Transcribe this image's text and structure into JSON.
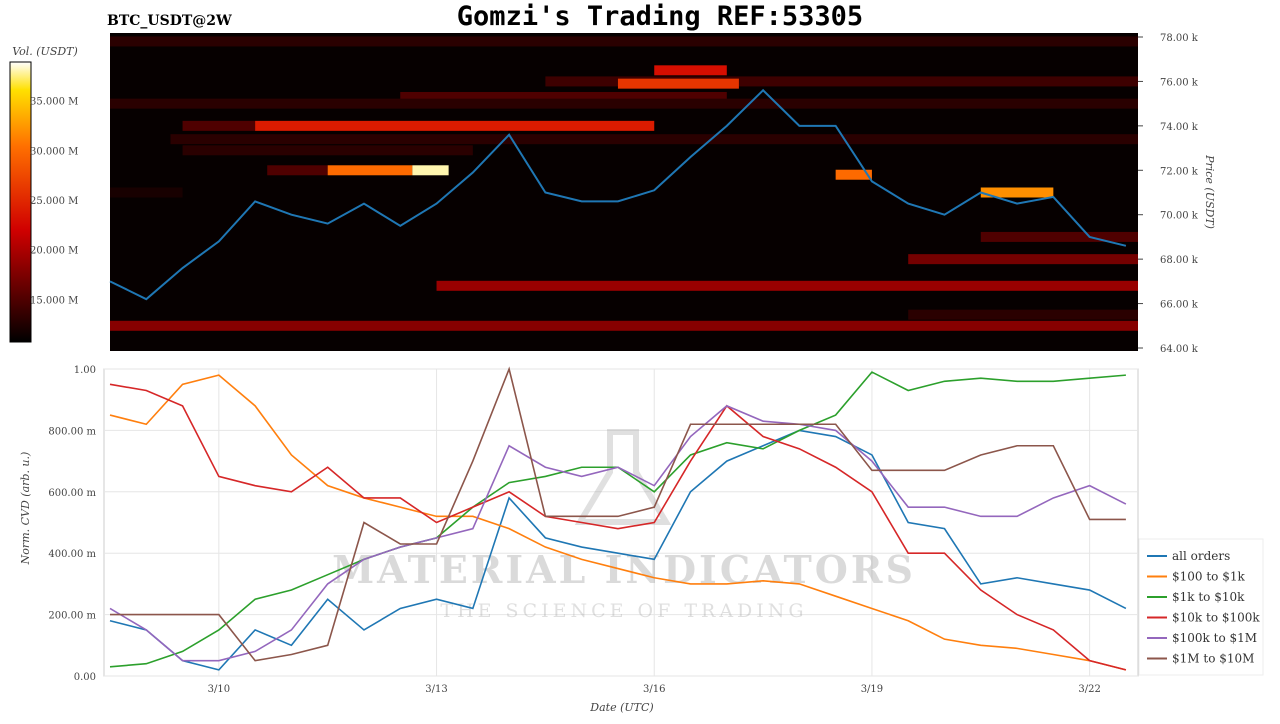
{
  "title": "Gomzi's Trading REF:53305",
  "pair_label": "BTC_USDT@2W",
  "watermark": {
    "line1": "MATERIAL INDICATORS",
    "line2": "THE SCIENCE OF TRADING"
  },
  "chart_data": [
    {
      "type": "heatmap",
      "title": "BTC_USDT@2W",
      "ylabel": "Price (USDT)",
      "yticks": [
        "64.00 k",
        "66.00 k",
        "68.00 k",
        "70.00 k",
        "72.00 k",
        "74.00 k",
        "76.00 k",
        "78.00 k"
      ],
      "ylim": [
        64000,
        78000
      ],
      "xlim": [
        "3/8 12:00",
        "3/22 16:00"
      ],
      "colorbar": {
        "label": "Vol. (USDT)",
        "ticks": [
          "15.000 M",
          "20.000 M",
          "25.000 M",
          "30.000 M",
          "35.000 M"
        ],
        "range_millions": [
          10.7,
          38.9
        ],
        "colormap": "hot"
      },
      "liquidity_bands": [
        {
          "price": 77800,
          "from": "3/8 12:00",
          "to": "3/22 16:00",
          "volume_m": 13
        },
        {
          "price": 76500,
          "from": "3/16 00:00",
          "to": "3/17 00:00",
          "volume_m": 23
        },
        {
          "price": 76000,
          "from": "3/14 12:00",
          "to": "3/22 16:00",
          "volume_m": 14
        },
        {
          "price": 75900,
          "from": "3/15 12:00",
          "to": "3/17 04:00",
          "volume_m": 26
        },
        {
          "price": 75300,
          "from": "3/12 12:00",
          "to": "3/17 00:00",
          "volume_m": 15
        },
        {
          "price": 75000,
          "from": "3/8 12:00",
          "to": "3/22 16:00",
          "volume_m": 13
        },
        {
          "price": 74000,
          "from": "3/9 12:00",
          "to": "3/10 12:00",
          "volume_m": 15
        },
        {
          "price": 74000,
          "from": "3/10 12:00",
          "to": "3/16 00:00",
          "volume_m": 24
        },
        {
          "price": 73400,
          "from": "3/9 08:00",
          "to": "3/22 16:00",
          "volume_m": 13
        },
        {
          "price": 72900,
          "from": "3/9 12:00",
          "to": "3/13 12:00",
          "volume_m": 13
        },
        {
          "price": 72000,
          "from": "3/10 16:00",
          "to": "3/11 12:00",
          "volume_m": 15
        },
        {
          "price": 72000,
          "from": "3/11 12:00",
          "to": "3/12 16:00",
          "volume_m": 30
        },
        {
          "price": 72000,
          "from": "3/12 16:00",
          "to": "3/13 04:00",
          "volume_m": 38
        },
        {
          "price": 71000,
          "from": "3/8 12:00",
          "to": "3/9 12:00",
          "volume_m": 12
        },
        {
          "price": 71800,
          "from": "3/18 12:00",
          "to": "3/19 00:00",
          "volume_m": 30
        },
        {
          "price": 71000,
          "from": "3/20 12:00",
          "to": "3/21 12:00",
          "volume_m": 32
        },
        {
          "price": 69000,
          "from": "3/20 12:00",
          "to": "3/22 16:00",
          "volume_m": 15
        },
        {
          "price": 68000,
          "from": "3/19 12:00",
          "to": "3/22 16:00",
          "volume_m": 17
        },
        {
          "price": 66800,
          "from": "3/13 00:00",
          "to": "3/22 16:00",
          "volume_m": 19
        },
        {
          "price": 65500,
          "from": "3/19 12:00",
          "to": "3/22 16:00",
          "volume_m": 13
        },
        {
          "price": 65000,
          "from": "3/8 12:00",
          "to": "3/22 16:00",
          "volume_m": 18
        }
      ],
      "price_series": {
        "x": [
          "3/8 12:00",
          "3/9 00:00",
          "3/9 12:00",
          "3/10 00:00",
          "3/10 12:00",
          "3/11 00:00",
          "3/11 12:00",
          "3/12 00:00",
          "3/12 12:00",
          "3/13 00:00",
          "3/13 12:00",
          "3/14 00:00",
          "3/14 12:00",
          "3/15 00:00",
          "3/15 12:00",
          "3/16 00:00",
          "3/16 12:00",
          "3/17 00:00",
          "3/17 12:00",
          "3/18 00:00",
          "3/18 12:00",
          "3/19 00:00",
          "3/19 12:00",
          "3/20 00:00",
          "3/20 12:00",
          "3/21 00:00",
          "3/21 12:00",
          "3/22 00:00",
          "3/22 12:00"
        ],
        "y": [
          67000,
          66200,
          67600,
          68800,
          70600,
          70000,
          69600,
          70500,
          69500,
          70500,
          71900,
          73600,
          71000,
          70600,
          70600,
          71100,
          72600,
          74000,
          75600,
          74000,
          74000,
          71500,
          70500,
          70000,
          71000,
          70500,
          70800,
          69000,
          68600
        ],
        "color": "#1f77b4"
      }
    },
    {
      "type": "line",
      "xlabel": "Date (UTC)",
      "ylabel": "Norm. CVD (arb. u.)",
      "xticks": [
        "3/10",
        "3/13",
        "3/16",
        "3/19",
        "3/22"
      ],
      "yticks": [
        "0.00",
        "200.00 m",
        "400.00 m",
        "600.00 m",
        "800.00 m",
        "1.00"
      ],
      "ylim": [
        0,
        1
      ],
      "grid": true,
      "legend_position": "bottom-right",
      "x": [
        "3/8 12:00",
        "3/9 00:00",
        "3/9 12:00",
        "3/10 00:00",
        "3/10 12:00",
        "3/11 00:00",
        "3/11 12:00",
        "3/12 00:00",
        "3/12 12:00",
        "3/13 00:00",
        "3/13 12:00",
        "3/14 00:00",
        "3/14 12:00",
        "3/15 00:00",
        "3/15 12:00",
        "3/16 00:00",
        "3/16 12:00",
        "3/17 00:00",
        "3/17 12:00",
        "3/18 00:00",
        "3/18 12:00",
        "3/19 00:00",
        "3/19 12:00",
        "3/20 00:00",
        "3/20 12:00",
        "3/21 00:00",
        "3/21 12:00",
        "3/22 00:00",
        "3/22 12:00"
      ],
      "series": [
        {
          "name": "all orders",
          "color": "#1f77b4",
          "values": [
            0.18,
            0.15,
            0.05,
            0.02,
            0.15,
            0.1,
            0.25,
            0.15,
            0.22,
            0.25,
            0.22,
            0.58,
            0.45,
            0.42,
            0.4,
            0.38,
            0.6,
            0.7,
            0.75,
            0.8,
            0.78,
            0.72,
            0.5,
            0.48,
            0.3,
            0.32,
            0.3,
            0.28,
            0.22
          ]
        },
        {
          "name": "$100 to $1k",
          "color": "#ff7f0e",
          "values": [
            0.85,
            0.82,
            0.95,
            0.98,
            0.88,
            0.72,
            0.62,
            0.58,
            0.55,
            0.52,
            0.52,
            0.48,
            0.42,
            0.38,
            0.35,
            0.32,
            0.3,
            0.3,
            0.31,
            0.3,
            0.26,
            0.22,
            0.18,
            0.12,
            0.1,
            0.09,
            0.07,
            0.05,
            0.02
          ]
        },
        {
          "name": "$1k to $10k",
          "color": "#2ca02c",
          "values": [
            0.03,
            0.04,
            0.08,
            0.15,
            0.25,
            0.28,
            0.33,
            0.38,
            0.42,
            0.45,
            0.55,
            0.63,
            0.65,
            0.68,
            0.68,
            0.6,
            0.72,
            0.76,
            0.74,
            0.8,
            0.85,
            0.99,
            0.93,
            0.96,
            0.97,
            0.96,
            0.96,
            0.97,
            0.98
          ]
        },
        {
          "name": "$10k to $100k",
          "color": "#d62728",
          "values": [
            0.95,
            0.93,
            0.88,
            0.65,
            0.62,
            0.6,
            0.68,
            0.58,
            0.58,
            0.5,
            0.55,
            0.6,
            0.52,
            0.5,
            0.48,
            0.5,
            0.7,
            0.88,
            0.78,
            0.74,
            0.68,
            0.6,
            0.4,
            0.4,
            0.28,
            0.2,
            0.15,
            0.05,
            0.02
          ]
        },
        {
          "name": "$100k to $1M",
          "color": "#9467bd",
          "values": [
            0.22,
            0.15,
            0.05,
            0.05,
            0.08,
            0.15,
            0.3,
            0.38,
            0.42,
            0.45,
            0.48,
            0.75,
            0.68,
            0.65,
            0.68,
            0.62,
            0.78,
            0.88,
            0.83,
            0.82,
            0.8,
            0.7,
            0.55,
            0.55,
            0.52,
            0.52,
            0.58,
            0.62,
            0.56
          ]
        },
        {
          "name": "$1M to $10M",
          "color": "#8c564b",
          "values": [
            0.2,
            0.2,
            0.2,
            0.2,
            0.05,
            0.07,
            0.1,
            0.5,
            0.43,
            0.43,
            0.7,
            1.0,
            0.52,
            0.52,
            0.52,
            0.55,
            0.82,
            0.82,
            0.82,
            0.82,
            0.82,
            0.67,
            0.67,
            0.67,
            0.72,
            0.75,
            0.75,
            0.51,
            0.51
          ]
        }
      ]
    }
  ]
}
